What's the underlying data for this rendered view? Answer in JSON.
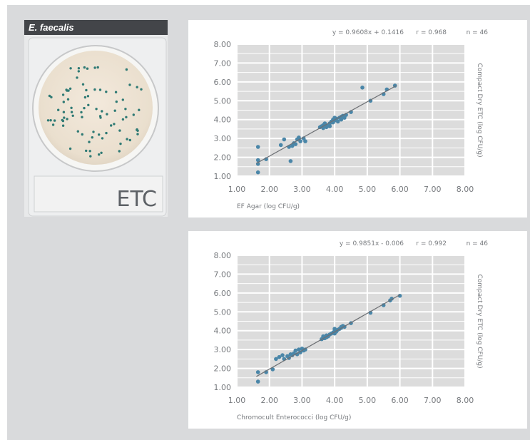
{
  "photo": {
    "label": "E. faecalis",
    "plate_text": "ETC",
    "colony_color": "#2f7a74"
  },
  "chart_data": [
    {
      "type": "scatter",
      "title": "",
      "equation": "y = 0.9608x + 0.1416",
      "r_text": "r = 0.968",
      "n_text": "n = 46",
      "xlabel": "EF Agar (log CFU/g)",
      "ylabel": "Compact Dry ETC (log CFU/g)",
      "xlim": [
        1,
        8
      ],
      "ylim": [
        1,
        8
      ],
      "xticks": [
        "1.00",
        "2.00",
        "3.00",
        "4.00",
        "5.00",
        "6.00",
        "7.00",
        "8.00"
      ],
      "yticks": [
        "1.00",
        "2.00",
        "3.00",
        "4.00",
        "5.00",
        "6.00",
        "7.00",
        "8.00"
      ],
      "grid": true,
      "trendline": {
        "slope": 0.9608,
        "intercept": 0.1416,
        "x_range": [
          1.6,
          5.9
        ]
      },
      "point_color": "#4a86a8",
      "plot_bg": "#dcdcdc",
      "points": [
        [
          1.65,
          2.55
        ],
        [
          1.65,
          1.85
        ],
        [
          1.65,
          1.65
        ],
        [
          1.65,
          1.2
        ],
        [
          1.9,
          1.9
        ],
        [
          2.35,
          2.65
        ],
        [
          2.45,
          2.95
        ],
        [
          2.6,
          2.55
        ],
        [
          2.65,
          1.8
        ],
        [
          2.7,
          2.6
        ],
        [
          2.75,
          2.75
        ],
        [
          2.8,
          2.7
        ],
        [
          2.85,
          2.95
        ],
        [
          2.95,
          2.85
        ],
        [
          3.05,
          3.0
        ],
        [
          3.1,
          2.85
        ],
        [
          3.55,
          3.6
        ],
        [
          3.6,
          3.65
        ],
        [
          3.65,
          3.7
        ],
        [
          3.65,
          3.55
        ],
        [
          3.7,
          3.75
        ],
        [
          3.75,
          3.6
        ],
        [
          3.8,
          3.7
        ],
        [
          3.85,
          3.8
        ],
        [
          3.9,
          3.9
        ],
        [
          3.95,
          4.0
        ],
        [
          3.95,
          3.85
        ],
        [
          4.0,
          3.95
        ],
        [
          4.05,
          4.05
        ],
        [
          4.1,
          3.9
        ],
        [
          4.15,
          4.1
        ],
        [
          4.2,
          4.15
        ],
        [
          4.2,
          4.0
        ],
        [
          4.25,
          4.2
        ],
        [
          4.3,
          4.1
        ],
        [
          4.5,
          4.4
        ],
        [
          4.85,
          5.7
        ],
        [
          5.1,
          5.0
        ],
        [
          5.5,
          5.35
        ],
        [
          5.6,
          5.6
        ],
        [
          5.85,
          5.8
        ],
        [
          3.7,
          3.8
        ],
        [
          4.0,
          4.1
        ],
        [
          3.85,
          3.65
        ],
        [
          2.9,
          3.05
        ],
        [
          4.35,
          4.25
        ]
      ]
    },
    {
      "type": "scatter",
      "title": "",
      "equation": "y = 0.9851x - 0.006",
      "r_text": "r = 0.992",
      "n_text": "n = 46",
      "xlabel": "Chromocult Enterococci (log CFU/g)",
      "ylabel": "Compact Dry ETC (log CFU/g)",
      "xlim": [
        1,
        8
      ],
      "ylim": [
        1,
        8
      ],
      "xticks": [
        "1.00",
        "2.00",
        "3.00",
        "4.00",
        "5.00",
        "6.00",
        "7.00",
        "8.00"
      ],
      "yticks": [
        "1.00",
        "2.00",
        "3.00",
        "4.00",
        "5.00",
        "6.00",
        "7.00",
        "8.00"
      ],
      "grid": true,
      "trendline": {
        "slope": 0.9851,
        "intercept": -0.006,
        "x_range": [
          1.6,
          6.0
        ]
      },
      "point_color": "#4a86a8",
      "plot_bg": "#dcdcdc",
      "points": [
        [
          1.65,
          1.8
        ],
        [
          1.65,
          1.3
        ],
        [
          1.9,
          1.8
        ],
        [
          2.1,
          1.95
        ],
        [
          2.2,
          2.5
        ],
        [
          2.3,
          2.6
        ],
        [
          2.4,
          2.7
        ],
        [
          2.55,
          2.65
        ],
        [
          2.65,
          2.75
        ],
        [
          2.75,
          2.8
        ],
        [
          2.8,
          2.95
        ],
        [
          2.85,
          2.75
        ],
        [
          2.9,
          3.0
        ],
        [
          2.95,
          2.85
        ],
        [
          3.0,
          3.05
        ],
        [
          3.1,
          3.0
        ],
        [
          3.6,
          3.55
        ],
        [
          3.65,
          3.7
        ],
        [
          3.7,
          3.6
        ],
        [
          3.75,
          3.75
        ],
        [
          3.8,
          3.7
        ],
        [
          3.9,
          3.85
        ],
        [
          3.95,
          3.9
        ],
        [
          4.0,
          4.0
        ],
        [
          4.0,
          3.85
        ],
        [
          4.05,
          3.95
        ],
        [
          4.1,
          4.05
        ],
        [
          4.2,
          4.15
        ],
        [
          4.25,
          4.25
        ],
        [
          4.3,
          4.2
        ],
        [
          4.5,
          4.4
        ],
        [
          5.1,
          4.95
        ],
        [
          5.5,
          5.35
        ],
        [
          5.7,
          5.6
        ],
        [
          5.75,
          5.7
        ],
        [
          6.0,
          5.85
        ],
        [
          3.65,
          3.6
        ],
        [
          3.85,
          3.8
        ],
        [
          4.15,
          4.1
        ],
        [
          2.6,
          2.55
        ],
        [
          3.05,
          2.95
        ],
        [
          4.0,
          4.1
        ],
        [
          2.7,
          2.7
        ],
        [
          3.75,
          3.65
        ],
        [
          4.2,
          4.2
        ],
        [
          2.45,
          2.5
        ]
      ]
    }
  ]
}
